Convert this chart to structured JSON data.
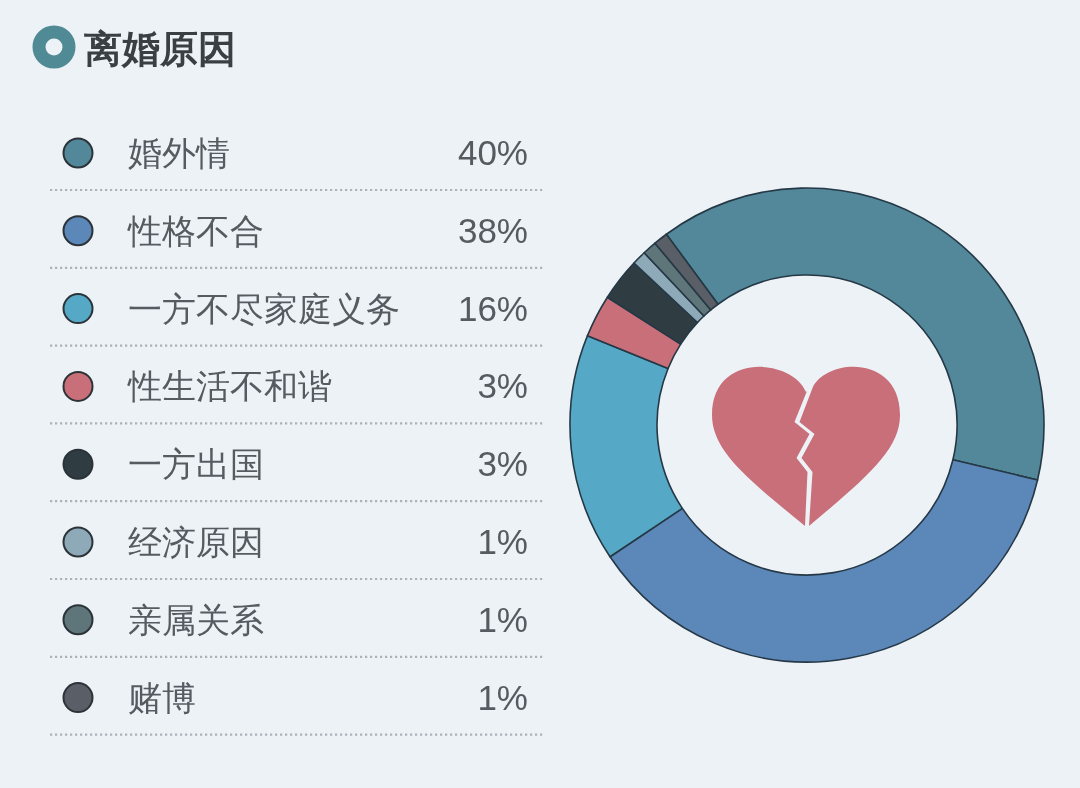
{
  "chart_data": {
    "type": "donut",
    "title": "离婚原因",
    "categories": [
      "婚外情",
      "性格不合",
      "一方不尽家庭义务",
      "性生活不和谐",
      "一方出国",
      "经济原因",
      "亲属关系",
      "赌博"
    ],
    "values": [
      40,
      38,
      16,
      3,
      3,
      1,
      1,
      1
    ],
    "colors": [
      "#52889a",
      "#5c87b9",
      "#55a9c6",
      "#c96f79",
      "#2f3d43",
      "#8eaab9",
      "#5e7579",
      "#5a5e66"
    ],
    "value_labels": [
      "40%",
      "38%",
      "16%",
      "3%",
      "3%",
      "1%",
      "1%",
      "1%"
    ],
    "legend": "left"
  }
}
